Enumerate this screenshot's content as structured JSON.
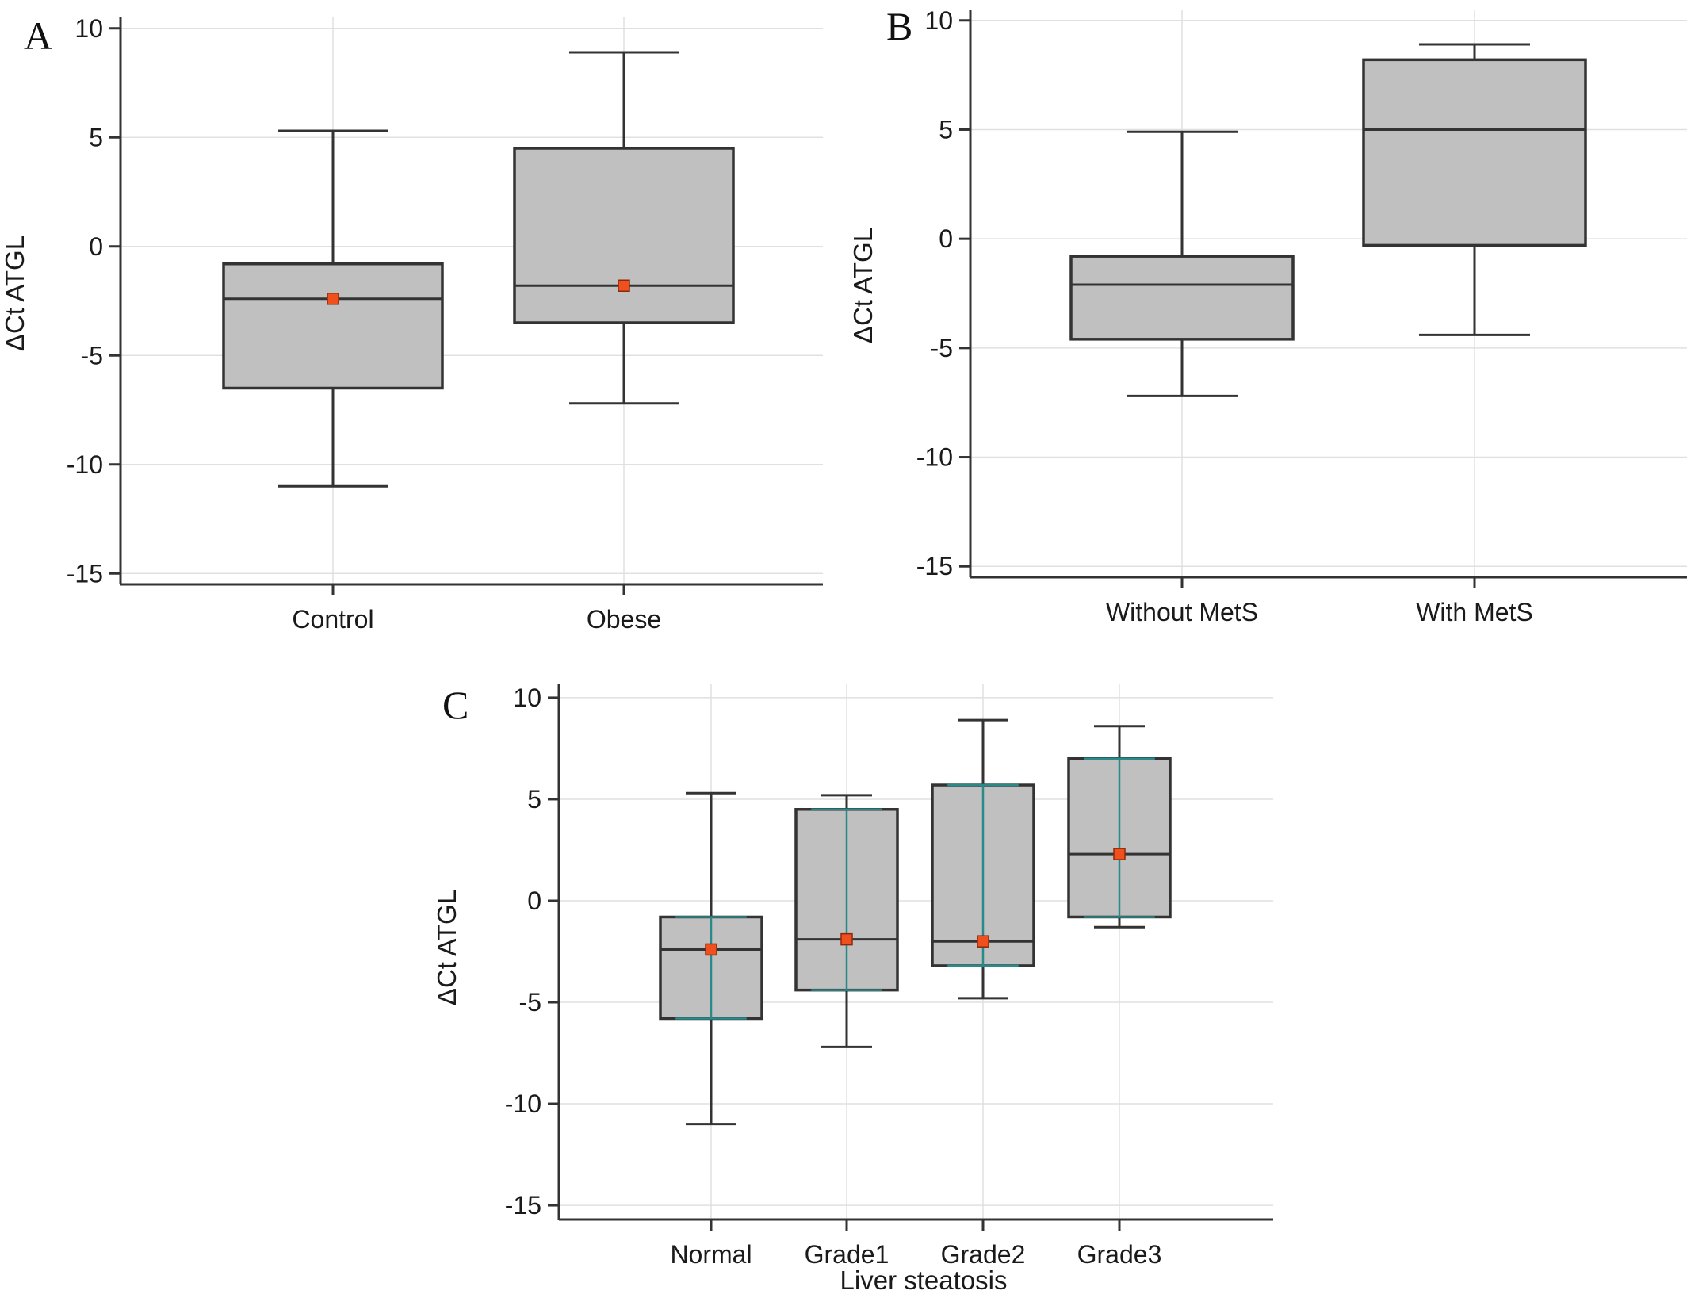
{
  "chart_data": [
    {
      "type": "box",
      "panel_label": "A",
      "ylabel": "ΔCt ATGL",
      "xlabel": "",
      "ylim": [
        -15.5,
        10.5
      ],
      "yticks": [
        10,
        5,
        0,
        -5,
        -10,
        -15
      ],
      "ytick_labels": [
        "10",
        "5",
        "0",
        "-5",
        "-10",
        "-15"
      ],
      "grid": true,
      "categories": [
        "Control",
        "Obese"
      ],
      "boxes": [
        {
          "name": "Control",
          "whisker_low": -11.0,
          "q1": -6.5,
          "median": -2.4,
          "q3": -0.8,
          "whisker_high": 5.3,
          "mean": -2.4
        },
        {
          "name": "Obese",
          "whisker_low": -7.2,
          "q1": -3.5,
          "median": -1.8,
          "q3": 4.5,
          "whisker_high": 8.9,
          "mean": -1.8
        }
      ]
    },
    {
      "type": "box",
      "panel_label": "B",
      "ylabel": "ΔCt ATGL",
      "xlabel": "",
      "ylim": [
        -15.5,
        10.5
      ],
      "yticks": [
        10,
        5,
        0,
        -5,
        -10,
        -15
      ],
      "ytick_labels": [
        "10",
        "5",
        "0",
        "-5",
        "-10",
        "-15"
      ],
      "grid": true,
      "categories": [
        "Without MetS",
        "With MetS"
      ],
      "boxes": [
        {
          "name": "Without MetS",
          "whisker_low": -7.2,
          "q1": -4.6,
          "median": -2.1,
          "q3": -0.8,
          "whisker_high": 4.9
        },
        {
          "name": "With MetS",
          "whisker_low": -4.4,
          "q1": -0.3,
          "median": 5.0,
          "q3": 8.2,
          "whisker_high": 8.9
        }
      ]
    },
    {
      "type": "box",
      "panel_label": "C",
      "ylabel": "ΔCt ATGL",
      "xlabel": "Liver steatosis",
      "ylim": [
        -15.7,
        10.7
      ],
      "yticks": [
        10,
        5,
        0,
        -5,
        -10,
        -15
      ],
      "ytick_labels": [
        "10",
        "5",
        "0",
        "-5",
        "-10",
        "-15"
      ],
      "grid": true,
      "categories": [
        "Normal",
        "Grade1",
        "Grade2",
        "Grade3"
      ],
      "boxes": [
        {
          "name": "Normal",
          "whisker_low": -11.0,
          "q1": -5.8,
          "median": -2.4,
          "q3": -0.8,
          "whisker_high": 5.3,
          "mean": -2.4,
          "ci_low": -5.8,
          "ci_high": -0.8
        },
        {
          "name": "Grade1",
          "whisker_low": -7.2,
          "q1": -4.4,
          "median": -1.9,
          "q3": 4.5,
          "whisker_high": 5.2,
          "mean": -1.9,
          "ci_low": -4.4,
          "ci_high": 4.5
        },
        {
          "name": "Grade2",
          "whisker_low": -4.8,
          "q1": -3.2,
          "median": -2.0,
          "q3": 5.7,
          "whisker_high": 8.9,
          "mean": -2.0,
          "ci_low": -3.2,
          "ci_high": 5.7
        },
        {
          "name": "Grade3",
          "whisker_low": -1.3,
          "q1": -0.8,
          "median": 2.3,
          "q3": 7.0,
          "whisker_high": 8.6,
          "mean": 2.3,
          "ci_low": -0.8,
          "ci_high": 7.0
        }
      ]
    }
  ]
}
